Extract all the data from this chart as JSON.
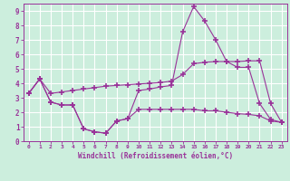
{
  "xlabel": "Windchill (Refroidissement éolien,°C)",
  "background_color": "#cceedd",
  "line_color": "#993399",
  "grid_color": "#ffffff",
  "xlim": [
    -0.5,
    23.5
  ],
  "ylim": [
    0,
    9.5
  ],
  "xticks": [
    0,
    1,
    2,
    3,
    4,
    5,
    6,
    7,
    8,
    9,
    10,
    11,
    12,
    13,
    14,
    15,
    16,
    17,
    18,
    19,
    20,
    21,
    22,
    23
  ],
  "yticks": [
    0,
    1,
    2,
    3,
    4,
    5,
    6,
    7,
    8,
    9
  ],
  "line1_x": [
    0,
    1,
    2,
    3,
    4,
    5,
    6,
    7,
    8,
    9,
    10,
    11,
    12,
    13,
    14,
    15,
    16,
    17,
    18,
    19,
    20,
    21,
    22,
    23
  ],
  "line1_y": [
    3.3,
    4.3,
    2.7,
    2.5,
    2.5,
    0.85,
    0.65,
    0.55,
    1.4,
    1.55,
    2.2,
    2.2,
    2.2,
    2.2,
    2.2,
    2.2,
    2.1,
    2.1,
    2.0,
    1.9,
    1.85,
    1.75,
    1.4,
    1.3
  ],
  "line2_x": [
    0,
    1,
    2,
    3,
    4,
    5,
    6,
    7,
    8,
    9,
    10,
    11,
    12,
    13,
    14,
    15,
    16,
    17,
    18,
    19,
    20,
    21,
    22,
    23
  ],
  "line2_y": [
    3.3,
    4.3,
    3.3,
    3.4,
    3.5,
    3.6,
    3.7,
    3.8,
    3.85,
    3.9,
    3.95,
    4.0,
    4.05,
    4.15,
    4.6,
    5.35,
    5.45,
    5.5,
    5.5,
    5.5,
    5.55,
    5.55,
    2.6,
    1.3
  ],
  "line3_x": [
    0,
    1,
    2,
    3,
    4,
    5,
    6,
    7,
    8,
    9,
    10,
    11,
    12,
    13,
    14,
    15,
    16,
    17,
    18,
    19,
    20,
    21,
    22,
    23
  ],
  "line3_y": [
    3.3,
    4.3,
    2.7,
    2.5,
    2.5,
    0.85,
    0.65,
    0.55,
    1.4,
    1.55,
    3.5,
    3.6,
    3.75,
    3.85,
    7.55,
    9.3,
    8.3,
    7.0,
    5.5,
    5.1,
    5.1,
    2.6,
    1.5,
    1.3
  ]
}
